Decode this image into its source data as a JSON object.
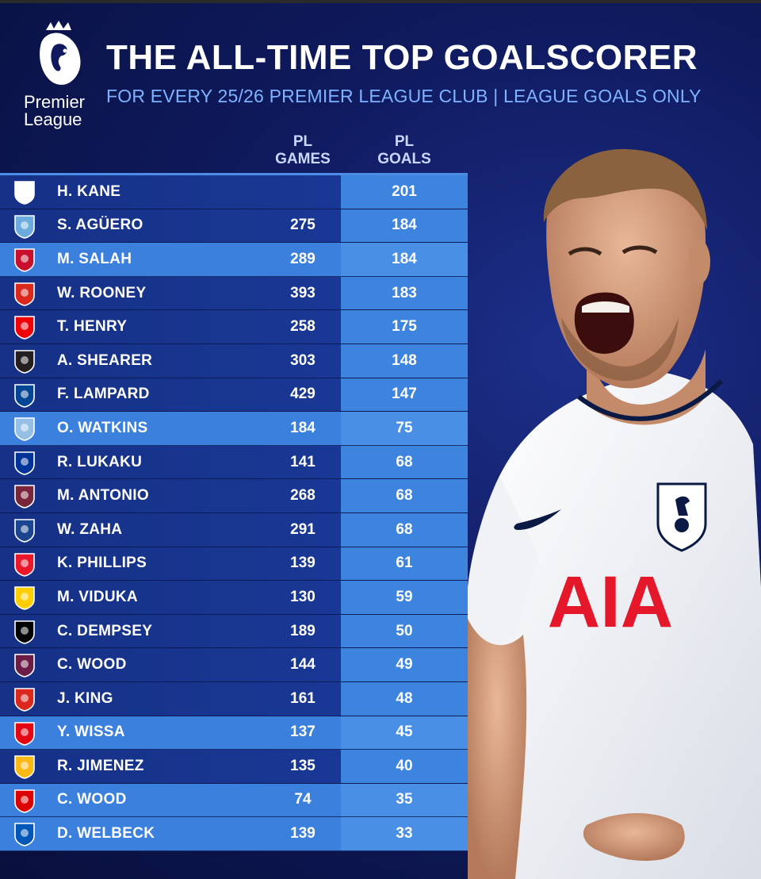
{
  "header": {
    "logo_word_1": "Premier",
    "logo_word_2": "League",
    "title": "THE ALL-TIME TOP GOALSCORER",
    "subtitle": "FOR EVERY 25/26 PREMIER LEAGUE CLUB | LEAGUE GOALS ONLY"
  },
  "columns": {
    "games_1": "PL",
    "games_2": "GAMES",
    "goals_1": "PL",
    "goals_2": "GOALS"
  },
  "rows": [
    {
      "name": "H. KANE",
      "games": "",
      "goals": "201",
      "badge": "tottenham-badge-icon",
      "color": "#ffffff",
      "style": "dark"
    },
    {
      "name": "S. AGÜERO",
      "games": "275",
      "goals": "184",
      "badge": "man-city-badge-icon",
      "color": "#6cabdd",
      "style": "dark"
    },
    {
      "name": "M. SALAH",
      "games": "289",
      "goals": "184",
      "badge": "liverpool-badge-icon",
      "color": "#c8102e",
      "style": "light"
    },
    {
      "name": "W. ROONEY",
      "games": "393",
      "goals": "183",
      "badge": "man-united-badge-icon",
      "color": "#da291c",
      "style": "dark"
    },
    {
      "name": "T. HENRY",
      "games": "258",
      "goals": "175",
      "badge": "arsenal-badge-icon",
      "color": "#ef0107",
      "style": "dark"
    },
    {
      "name": "A. SHEARER",
      "games": "303",
      "goals": "148",
      "badge": "newcastle-badge-icon",
      "color": "#241f20",
      "style": "dark"
    },
    {
      "name": "F. LAMPARD",
      "games": "429",
      "goals": "147",
      "badge": "chelsea-badge-icon",
      "color": "#034694",
      "style": "dark"
    },
    {
      "name": "O. WATKINS",
      "games": "184",
      "goals": "75",
      "badge": "aston-villa-badge-icon",
      "color": "#95bfe5",
      "style": "light"
    },
    {
      "name": "R. LUKAKU",
      "games": "141",
      "goals": "68",
      "badge": "everton-badge-icon",
      "color": "#003399",
      "style": "dark"
    },
    {
      "name": "M. ANTONIO",
      "games": "268",
      "goals": "68",
      "badge": "west-ham-badge-icon",
      "color": "#7a263a",
      "style": "dark"
    },
    {
      "name": "W. ZAHA",
      "games": "291",
      "goals": "68",
      "badge": "crystal-palace-badge-icon",
      "color": "#1b458f",
      "style": "dark"
    },
    {
      "name": "K. PHILLIPS",
      "games": "139",
      "goals": "61",
      "badge": "sunderland-badge-icon",
      "color": "#eb172b",
      "style": "dark"
    },
    {
      "name": "M. VIDUKA",
      "games": "130",
      "goals": "59",
      "badge": "leeds-badge-icon",
      "color": "#ffcd00",
      "style": "dark"
    },
    {
      "name": "C. DEMPSEY",
      "games": "189",
      "goals": "50",
      "badge": "fulham-badge-icon",
      "color": "#000000",
      "style": "dark"
    },
    {
      "name": "C. WOOD",
      "games": "144",
      "goals": "49",
      "badge": "burnley-badge-icon",
      "color": "#6c1d45",
      "style": "dark"
    },
    {
      "name": "J. KING",
      "games": "161",
      "goals": "48",
      "badge": "bournemouth-badge-icon",
      "color": "#da291c",
      "style": "dark"
    },
    {
      "name": "Y. WISSA",
      "games": "137",
      "goals": "45",
      "badge": "brentford-badge-icon",
      "color": "#e30613",
      "style": "light"
    },
    {
      "name": "R. JIMENEZ",
      "games": "135",
      "goals": "40",
      "badge": "wolves-badge-icon",
      "color": "#fdb913",
      "style": "dark"
    },
    {
      "name": "C. WOOD",
      "games": "74",
      "goals": "35",
      "badge": "nottingham-forest-badge-icon",
      "color": "#dd0000",
      "style": "light"
    },
    {
      "name": "D. WELBECK",
      "games": "139",
      "goals": "33",
      "badge": "brighton-badge-icon",
      "color": "#0057b8",
      "style": "light"
    }
  ],
  "player": {
    "shirt_sponsor": "AIA"
  }
}
